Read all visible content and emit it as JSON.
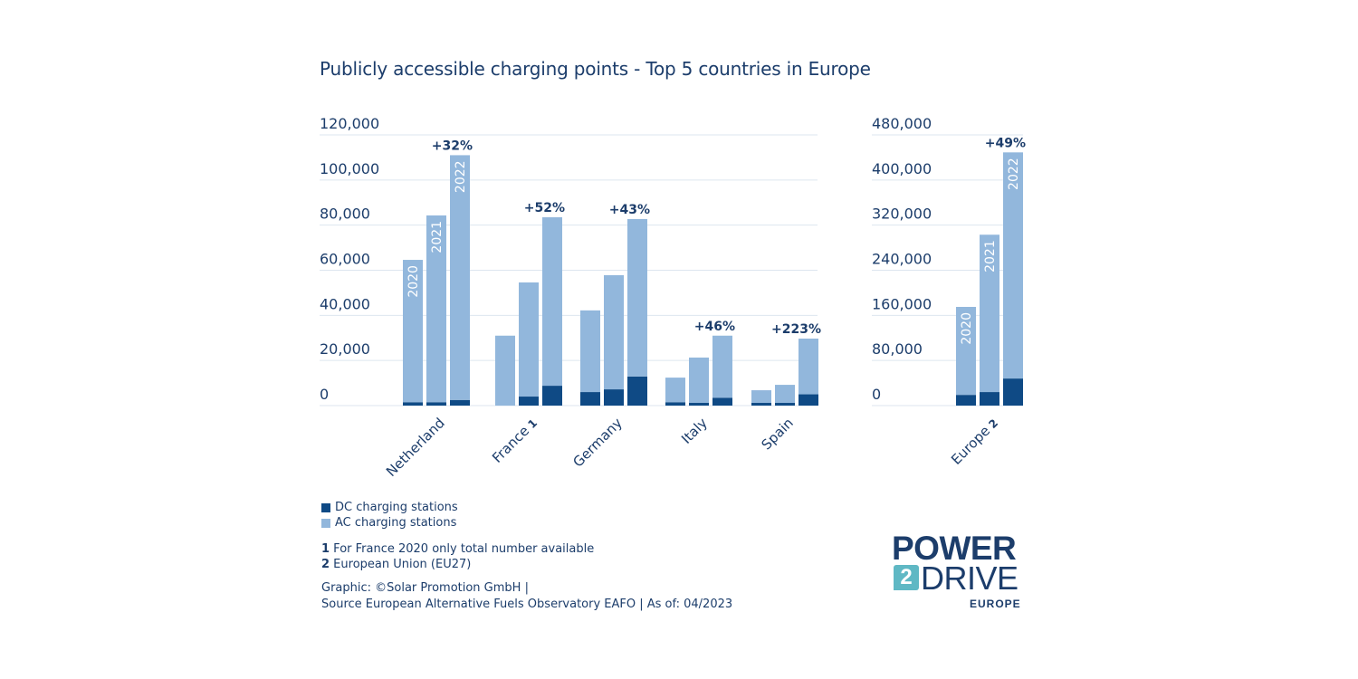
{
  "chart_data": [
    {
      "type": "bar",
      "stacked": true,
      "title": "Publicly accessible charging points - Top 5 countries in Europe",
      "xlabel": "",
      "ylabel": "",
      "ylim": [
        0,
        120000
      ],
      "yticks": [
        0,
        20000,
        40000,
        60000,
        80000,
        100000,
        120000
      ],
      "ytick_labels": [
        "0",
        "20,000",
        "40,000",
        "60,000",
        "80,000",
        "100,000",
        "120,000"
      ],
      "grid": true,
      "categories": [
        {
          "name": "Netherland",
          "footnote": ""
        },
        {
          "name": "France",
          "footnote": "1"
        },
        {
          "name": "Germany",
          "footnote": ""
        },
        {
          "name": "Italy",
          "footnote": ""
        },
        {
          "name": "Spain",
          "footnote": ""
        }
      ],
      "years": [
        "2020",
        "2021",
        "2022"
      ],
      "year_labels_shown_on": "Netherland",
      "series": [
        {
          "name": "DC charging stations",
          "color": "#0f4a85",
          "values": [
            [
              1500,
              1500,
              2500
            ],
            [
              0,
              4000,
              8800
            ],
            [
              6000,
              7200,
              12900
            ],
            [
              1500,
              1200,
              3500
            ],
            [
              1200,
              1200,
              5000
            ]
          ]
        },
        {
          "name": "AC charging stations",
          "color": "#92b7dc",
          "values": [
            [
              63100,
              82800,
              108500
            ],
            [
              31000,
              50600,
              74700
            ],
            [
              36200,
              50600,
              69800
            ],
            [
              10900,
              20100,
              27500
            ],
            [
              5600,
              8000,
              24700
            ]
          ]
        }
      ],
      "growth_labels": [
        "+32%",
        "+52%",
        "+43%",
        "+46%",
        "+223%"
      ]
    },
    {
      "type": "bar",
      "stacked": true,
      "title": "",
      "ylim": [
        0,
        480000
      ],
      "yticks": [
        0,
        80000,
        160000,
        240000,
        320000,
        400000,
        480000
      ],
      "ytick_labels": [
        "0",
        "80,000",
        "160,000",
        "240,000",
        "320,000",
        "400,000",
        "480,000"
      ],
      "grid": true,
      "categories": [
        {
          "name": "Europe",
          "footnote": "2"
        }
      ],
      "years": [
        "2020",
        "2021",
        "2022"
      ],
      "year_labels_shown_on": "Europe",
      "series": [
        {
          "name": "DC charging stations",
          "color": "#0f4a85",
          "values": [
            [
              19000,
              24000,
              48000
            ]
          ]
        },
        {
          "name": "AC charging stations",
          "color": "#92b7dc",
          "values": [
            [
              156000,
              279000,
              401000
            ]
          ]
        }
      ],
      "growth_labels": [
        "+49%"
      ]
    }
  ],
  "legend": {
    "position": "bottom-left",
    "items": [
      {
        "label": "DC charging stations",
        "color": "#0f4a85"
      },
      {
        "label": "AC charging stations",
        "color": "#92b7dc"
      }
    ]
  },
  "footnotes": [
    {
      "mark": "1",
      "text": " For France 2020 only total number available"
    },
    {
      "mark": "2",
      "text": " European Union (EU27)"
    }
  ],
  "credits": {
    "line1": "Graphic: ©Solar Promotion GmbH |",
    "line2": "Source European Alternative Fuels Observatory EAFO | As of: 04/2023"
  },
  "logo": {
    "word1": "POWER",
    "digit": "2",
    "word2": "DRIVE",
    "word3": "EUROPE",
    "accent_color": "#5fb8c4",
    "brand_color": "#1c3d6b"
  }
}
